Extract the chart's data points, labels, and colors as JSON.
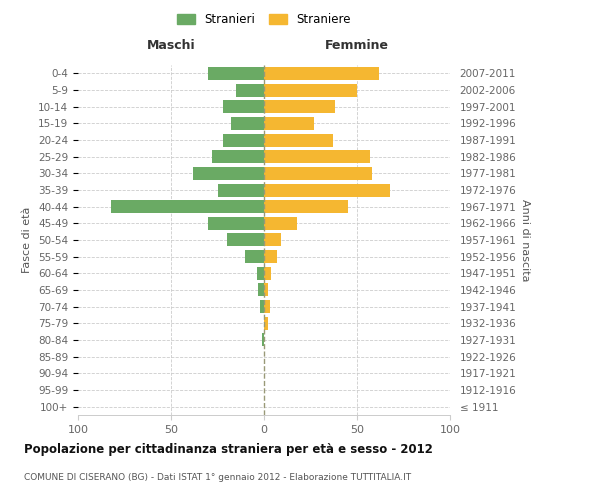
{
  "age_groups": [
    "0-4",
    "5-9",
    "10-14",
    "15-19",
    "20-24",
    "25-29",
    "30-34",
    "35-39",
    "40-44",
    "45-49",
    "50-54",
    "55-59",
    "60-64",
    "65-69",
    "70-74",
    "75-79",
    "80-84",
    "85-89",
    "90-94",
    "95-99",
    "100+"
  ],
  "birth_years": [
    "2007-2011",
    "2002-2006",
    "1997-2001",
    "1992-1996",
    "1987-1991",
    "1982-1986",
    "1977-1981",
    "1972-1976",
    "1967-1971",
    "1962-1966",
    "1957-1961",
    "1952-1956",
    "1947-1951",
    "1942-1946",
    "1937-1941",
    "1932-1936",
    "1927-1931",
    "1922-1926",
    "1917-1921",
    "1912-1916",
    "≤ 1911"
  ],
  "males": [
    30,
    15,
    22,
    18,
    22,
    28,
    38,
    25,
    82,
    30,
    20,
    10,
    4,
    3,
    2,
    0,
    1,
    0,
    0,
    0,
    0
  ],
  "females": [
    62,
    50,
    38,
    27,
    37,
    57,
    58,
    68,
    45,
    18,
    9,
    7,
    4,
    2,
    3,
    2,
    0,
    0,
    0,
    0,
    0
  ],
  "male_color": "#6aaa64",
  "female_color": "#f5b731",
  "title": "Popolazione per cittadinanza straniera per età e sesso - 2012",
  "subtitle": "COMUNE DI CISERANO (BG) - Dati ISTAT 1° gennaio 2012 - Elaborazione TUTTITALIA.IT",
  "ylabel_left": "Fasce di età",
  "ylabel_right": "Anni di nascita",
  "xlabel_left": "Maschi",
  "xlabel_right": "Femmine",
  "legend_male": "Stranieri",
  "legend_female": "Straniere",
  "xlim": 100,
  "background_color": "#ffffff",
  "grid_color": "#cccccc"
}
